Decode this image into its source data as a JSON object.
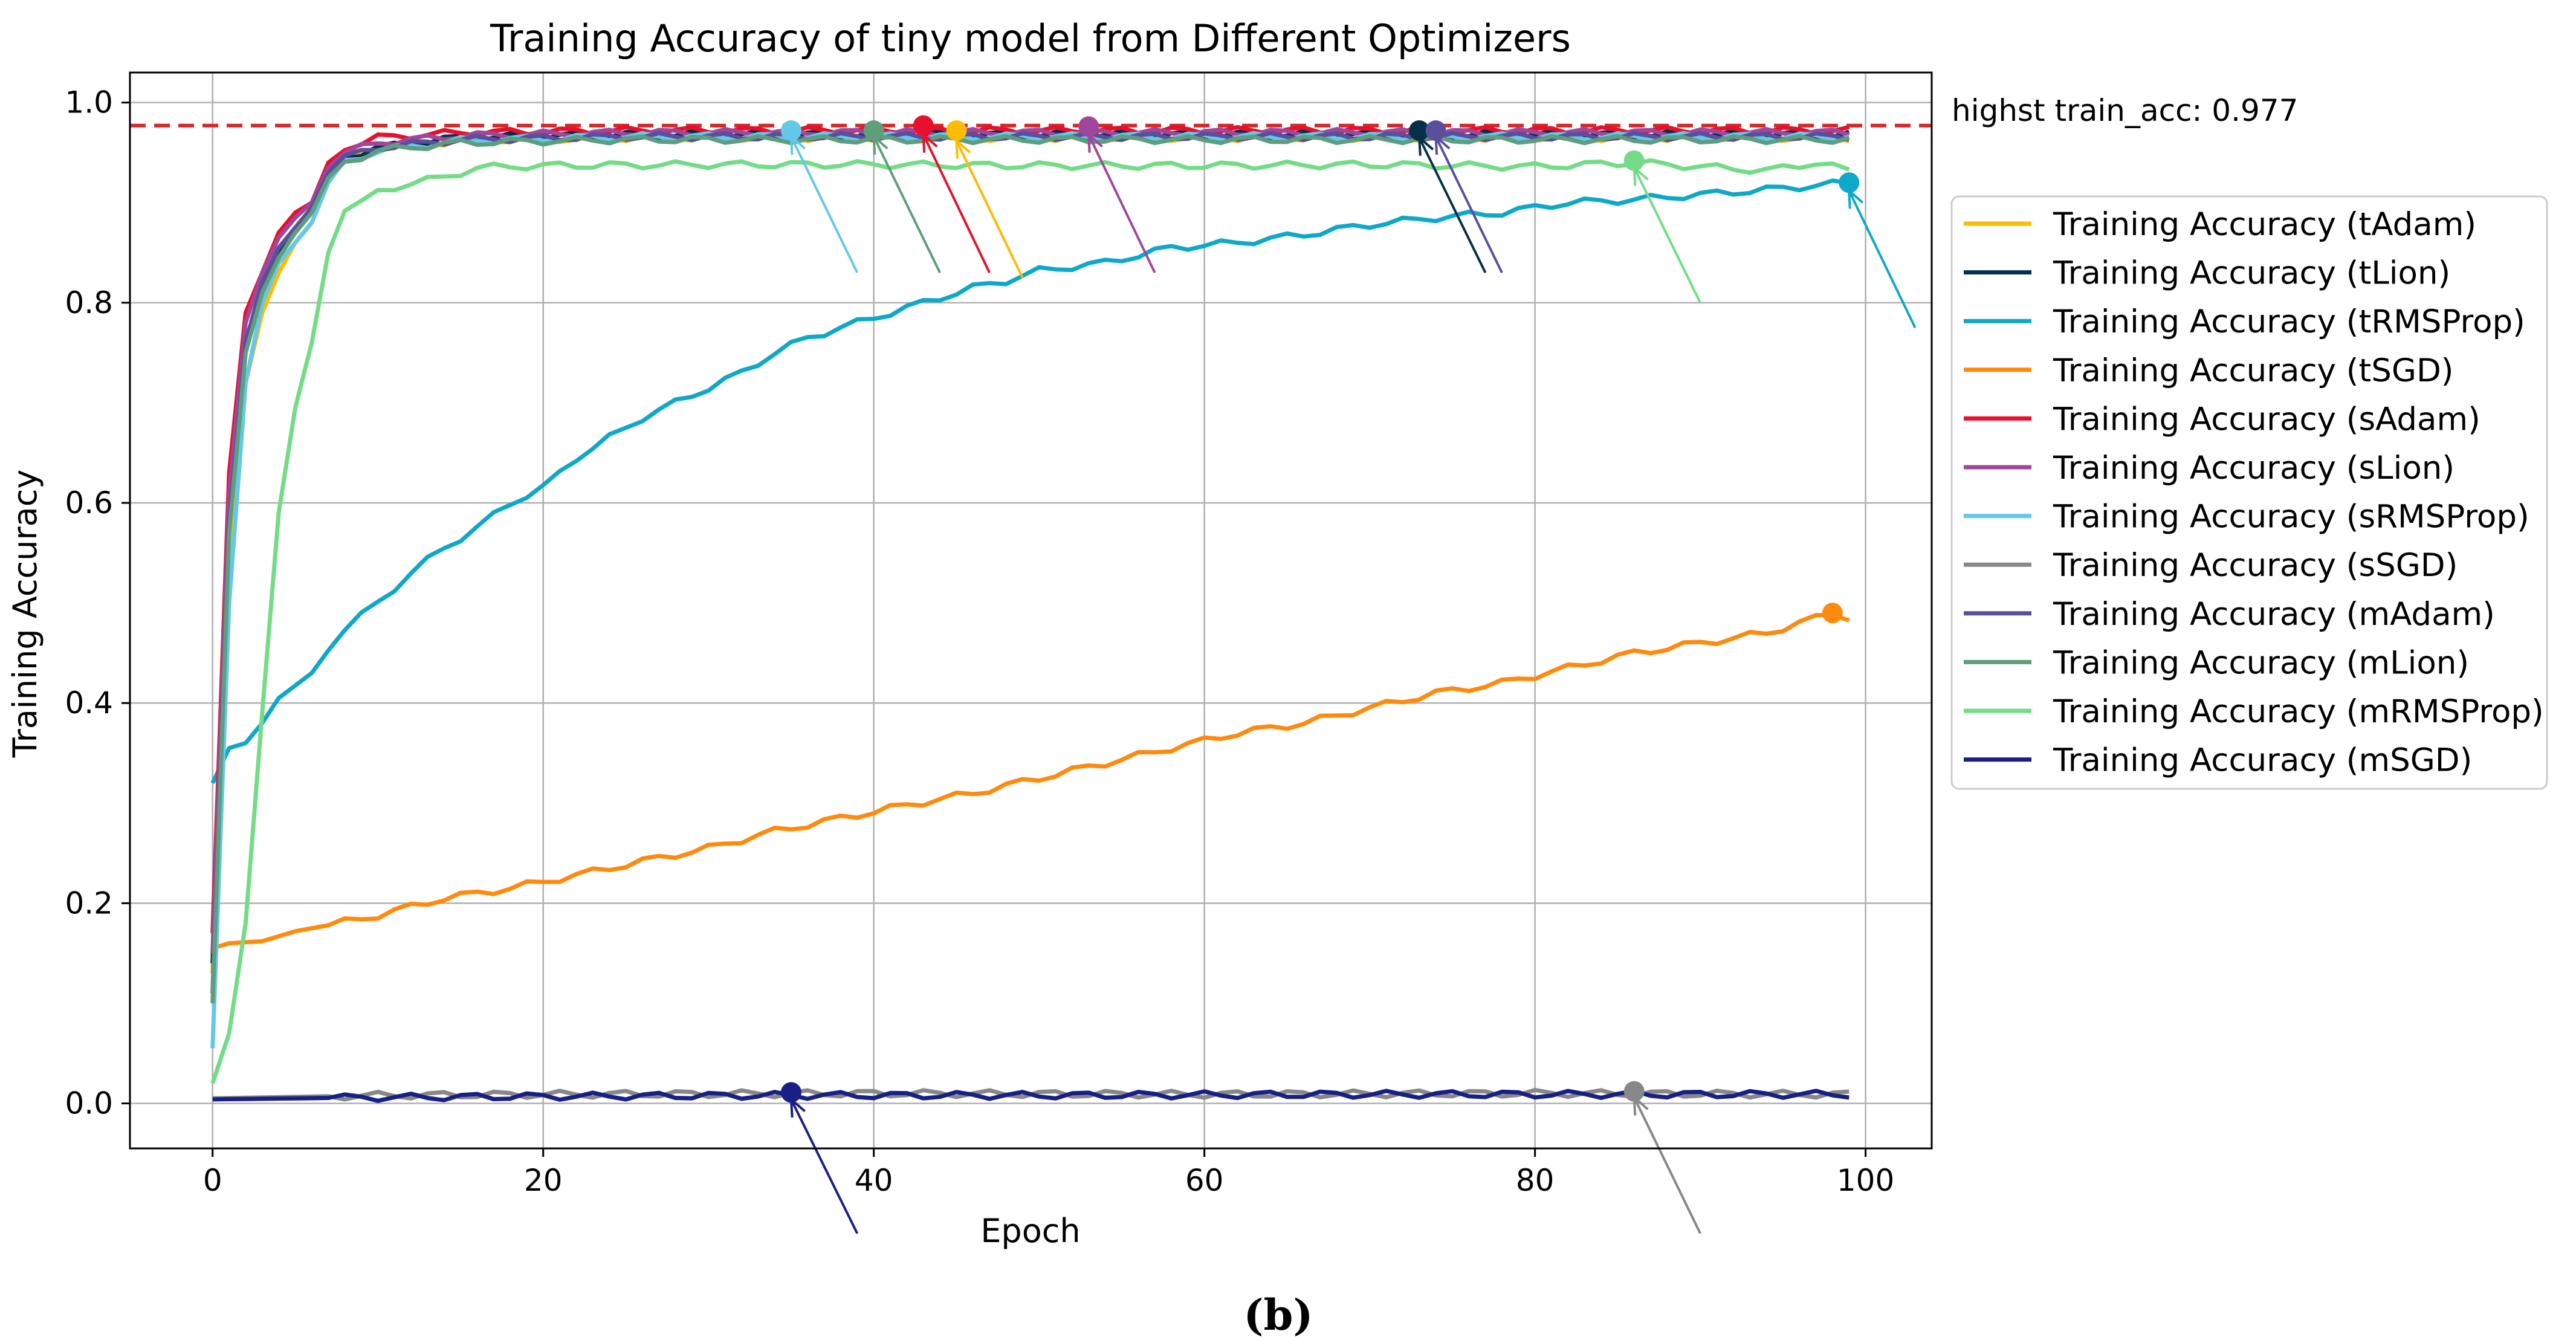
{
  "caption": "(b)",
  "chart_data": {
    "type": "line",
    "title": "Training Accuracy of tiny model from Different Optimizers",
    "xlabel": "Epoch",
    "ylabel": "Training Accuracy",
    "xlim": [
      -5,
      104
    ],
    "ylim": [
      -0.045,
      1.03
    ],
    "grid": true,
    "x_ticks": [
      0,
      20,
      40,
      60,
      80,
      100
    ],
    "y_ticks": [
      0.0,
      0.2,
      0.4,
      0.6,
      0.8,
      1.0
    ],
    "x_tick_labels": [
      "0",
      "20",
      "40",
      "60",
      "80",
      "100"
    ],
    "y_tick_labels": [
      "0.0",
      "0.2",
      "0.4",
      "0.6",
      "0.8",
      "1.0"
    ],
    "legend_position": "outside-right",
    "reference_line": {
      "y": 0.977,
      "color": "#d62728",
      "style": "dashed",
      "label": "highst train_acc: 0.977"
    },
    "series": [
      {
        "name": "Training Accuracy (tAdam)",
        "color": "#fbbc05",
        "start": 0.13,
        "anchors": [
          [
            0,
            0.13
          ],
          [
            1,
            0.55
          ],
          [
            2,
            0.72
          ],
          [
            3,
            0.79
          ],
          [
            4,
            0.83
          ],
          [
            5,
            0.86
          ],
          [
            6,
            0.88
          ],
          [
            7,
            0.92
          ],
          [
            8,
            0.94
          ],
          [
            10,
            0.955
          ],
          [
            15,
            0.962
          ],
          [
            25,
            0.965
          ],
          [
            50,
            0.965
          ],
          [
            75,
            0.965
          ],
          [
            99,
            0.965
          ]
        ],
        "max_epoch": 45,
        "max_value": 0.972,
        "arrow_tip_epoch": 45,
        "arrow_tip_value": 0.962,
        "arrow_tail_epoch": 49,
        "arrow_tail_value": 0.825
      },
      {
        "name": "Training Accuracy (tLion)",
        "color": "#06304a",
        "start": 0.14,
        "anchors": [
          [
            0,
            0.14
          ],
          [
            1,
            0.6
          ],
          [
            2,
            0.76
          ],
          [
            3,
            0.82
          ],
          [
            4,
            0.85
          ],
          [
            5,
            0.87
          ],
          [
            6,
            0.89
          ],
          [
            7,
            0.93
          ],
          [
            8,
            0.945
          ],
          [
            10,
            0.955
          ],
          [
            15,
            0.965
          ],
          [
            25,
            0.968
          ],
          [
            50,
            0.968
          ],
          [
            75,
            0.968
          ],
          [
            99,
            0.968
          ]
        ],
        "max_epoch": 73,
        "max_value": 0.972,
        "arrow_tip_epoch": 73,
        "arrow_tip_value": 0.965,
        "arrow_tail_epoch": 77,
        "arrow_tail_value": 0.83
      },
      {
        "name": "Training Accuracy (tRMSProp)",
        "color": "#0ea8c8",
        "start": 0.32,
        "anchors": [
          [
            0,
            0.32
          ],
          [
            1,
            0.355
          ],
          [
            2,
            0.36
          ],
          [
            3,
            0.38
          ],
          [
            4,
            0.405
          ],
          [
            6,
            0.43
          ],
          [
            8,
            0.475
          ],
          [
            10,
            0.5
          ],
          [
            12,
            0.53
          ],
          [
            14,
            0.555
          ],
          [
            16,
            0.575
          ],
          [
            18,
            0.6
          ],
          [
            20,
            0.615
          ],
          [
            22,
            0.645
          ],
          [
            24,
            0.665
          ],
          [
            26,
            0.685
          ],
          [
            28,
            0.7
          ],
          [
            30,
            0.715
          ],
          [
            32,
            0.73
          ],
          [
            34,
            0.75
          ],
          [
            36,
            0.765
          ],
          [
            38,
            0.775
          ],
          [
            40,
            0.785
          ],
          [
            42,
            0.795
          ],
          [
            44,
            0.805
          ],
          [
            46,
            0.815
          ],
          [
            48,
            0.822
          ],
          [
            50,
            0.832
          ],
          [
            54,
            0.84
          ],
          [
            58,
            0.855
          ],
          [
            62,
            0.86
          ],
          [
            66,
            0.868
          ],
          [
            70,
            0.878
          ],
          [
            74,
            0.885
          ],
          [
            78,
            0.89
          ],
          [
            82,
            0.9
          ],
          [
            86,
            0.903
          ],
          [
            90,
            0.908
          ],
          [
            94,
            0.913
          ],
          [
            99,
            0.92
          ]
        ],
        "max_epoch": 99,
        "max_value": 0.92,
        "arrow_tip_epoch": 99,
        "arrow_tip_value": 0.912,
        "arrow_tail_epoch": 103,
        "arrow_tail_value": 0.775
      },
      {
        "name": "Training Accuracy (tSGD)",
        "color": "#ff8a0c",
        "start": 0.155,
        "anchors": [
          [
            0,
            0.155
          ],
          [
            1,
            0.16
          ],
          [
            3,
            0.162
          ],
          [
            5,
            0.172
          ],
          [
            7,
            0.178
          ],
          [
            10,
            0.188
          ],
          [
            14,
            0.205
          ],
          [
            18,
            0.215
          ],
          [
            22,
            0.228
          ],
          [
            26,
            0.242
          ],
          [
            30,
            0.255
          ],
          [
            34,
            0.272
          ],
          [
            38,
            0.285
          ],
          [
            42,
            0.298
          ],
          [
            46,
            0.31
          ],
          [
            50,
            0.325
          ],
          [
            54,
            0.34
          ],
          [
            58,
            0.355
          ],
          [
            62,
            0.37
          ],
          [
            66,
            0.38
          ],
          [
            70,
            0.395
          ],
          [
            74,
            0.41
          ],
          [
            78,
            0.42
          ],
          [
            82,
            0.435
          ],
          [
            86,
            0.45
          ],
          [
            90,
            0.46
          ],
          [
            94,
            0.47
          ],
          [
            98,
            0.49
          ],
          [
            99,
            0.485
          ]
        ],
        "max_epoch": 98,
        "max_value": 0.49,
        "arrow_tip_epoch": null,
        "arrow_tip_value": null,
        "arrow_tail_epoch": null,
        "arrow_tail_value": null
      },
      {
        "name": "Training Accuracy (sAdam)",
        "color": "#e8102d",
        "start": 0.17,
        "anchors": [
          [
            0,
            0.17
          ],
          [
            1,
            0.63
          ],
          [
            2,
            0.79
          ],
          [
            3,
            0.83
          ],
          [
            4,
            0.87
          ],
          [
            5,
            0.89
          ],
          [
            6,
            0.9
          ],
          [
            7,
            0.94
          ],
          [
            8,
            0.955
          ],
          [
            10,
            0.965
          ],
          [
            15,
            0.97
          ],
          [
            25,
            0.972
          ],
          [
            50,
            0.972
          ],
          [
            75,
            0.972
          ],
          [
            99,
            0.972
          ]
        ],
        "max_epoch": 43,
        "max_value": 0.977,
        "arrow_tip_epoch": 43,
        "arrow_tip_value": 0.968,
        "arrow_tail_epoch": 47,
        "arrow_tail_value": 0.83
      },
      {
        "name": "Training Accuracy (sLion)",
        "color": "#a0479c",
        "start": 0.15,
        "anchors": [
          [
            0,
            0.15
          ],
          [
            1,
            0.61
          ],
          [
            2,
            0.78
          ],
          [
            3,
            0.83
          ],
          [
            4,
            0.865
          ],
          [
            5,
            0.885
          ],
          [
            6,
            0.9
          ],
          [
            7,
            0.935
          ],
          [
            8,
            0.95
          ],
          [
            10,
            0.96
          ],
          [
            15,
            0.967
          ],
          [
            25,
            0.97
          ],
          [
            50,
            0.97
          ],
          [
            75,
            0.97
          ],
          [
            99,
            0.97
          ]
        ],
        "max_epoch": 53,
        "max_value": 0.976,
        "arrow_tip_epoch": 53,
        "arrow_tip_value": 0.968,
        "arrow_tail_epoch": 57,
        "arrow_tail_value": 0.83
      },
      {
        "name": "Training Accuracy (sRMSProp)",
        "color": "#64c8eb",
        "start": 0.055,
        "anchors": [
          [
            0,
            0.055
          ],
          [
            1,
            0.5
          ],
          [
            2,
            0.72
          ],
          [
            3,
            0.8
          ],
          [
            4,
            0.84
          ],
          [
            5,
            0.86
          ],
          [
            6,
            0.88
          ],
          [
            7,
            0.92
          ],
          [
            8,
            0.94
          ],
          [
            10,
            0.952
          ],
          [
            15,
            0.962
          ],
          [
            25,
            0.966
          ],
          [
            50,
            0.966
          ],
          [
            75,
            0.966
          ],
          [
            99,
            0.966
          ]
        ],
        "max_epoch": 35,
        "max_value": 0.972,
        "arrow_tip_epoch": 35,
        "arrow_tip_value": 0.966,
        "arrow_tail_epoch": 39,
        "arrow_tail_value": 0.83
      },
      {
        "name": "Training Accuracy (sSGD)",
        "color": "#888888",
        "start": 0.005,
        "anchors": [
          [
            0,
            0.005
          ],
          [
            10,
            0.008
          ],
          [
            20,
            0.009
          ],
          [
            40,
            0.01
          ],
          [
            60,
            0.009
          ],
          [
            80,
            0.01
          ],
          [
            99,
            0.009
          ]
        ],
        "max_epoch": 86,
        "max_value": 0.012,
        "arrow_tip_epoch": 86,
        "arrow_tip_value": 0.006,
        "arrow_tail_epoch": 90,
        "arrow_tail_value": -0.13
      },
      {
        "name": "Training Accuracy (mAdam)",
        "color": "#5a4f9a",
        "start": 0.11,
        "anchors": [
          [
            0,
            0.11
          ],
          [
            1,
            0.58
          ],
          [
            2,
            0.76
          ],
          [
            3,
            0.82
          ],
          [
            4,
            0.855
          ],
          [
            5,
            0.875
          ],
          [
            6,
            0.895
          ],
          [
            7,
            0.93
          ],
          [
            8,
            0.945
          ],
          [
            10,
            0.955
          ],
          [
            15,
            0.963
          ],
          [
            25,
            0.966
          ],
          [
            50,
            0.966
          ],
          [
            75,
            0.966
          ],
          [
            99,
            0.966
          ]
        ],
        "max_epoch": 74,
        "max_value": 0.972,
        "arrow_tip_epoch": 74,
        "arrow_tip_value": 0.966,
        "arrow_tail_epoch": 78,
        "arrow_tail_value": 0.83
      },
      {
        "name": "Training Accuracy (mLion)",
        "color": "#5e9e7c",
        "start": 0.1,
        "anchors": [
          [
            0,
            0.1
          ],
          [
            1,
            0.57
          ],
          [
            2,
            0.75
          ],
          [
            3,
            0.81
          ],
          [
            4,
            0.845
          ],
          [
            5,
            0.87
          ],
          [
            6,
            0.89
          ],
          [
            7,
            0.925
          ],
          [
            8,
            0.94
          ],
          [
            10,
            0.952
          ],
          [
            15,
            0.96
          ],
          [
            25,
            0.963
          ],
          [
            50,
            0.963
          ],
          [
            75,
            0.963
          ],
          [
            99,
            0.963
          ]
        ],
        "max_epoch": 40,
        "max_value": 0.972,
        "arrow_tip_epoch": 40,
        "arrow_tip_value": 0.966,
        "arrow_tail_epoch": 44,
        "arrow_tail_value": 0.83
      },
      {
        "name": "Training Accuracy (mRMSProp)",
        "color": "#74dc86",
        "start": 0.02,
        "anchors": [
          [
            0,
            0.02
          ],
          [
            1,
            0.07
          ],
          [
            2,
            0.18
          ],
          [
            3,
            0.39
          ],
          [
            4,
            0.59
          ],
          [
            5,
            0.695
          ],
          [
            6,
            0.76
          ],
          [
            7,
            0.85
          ],
          [
            8,
            0.895
          ],
          [
            9,
            0.9
          ],
          [
            10,
            0.91
          ],
          [
            12,
            0.92
          ],
          [
            14,
            0.925
          ],
          [
            16,
            0.935
          ],
          [
            20,
            0.937
          ],
          [
            30,
            0.938
          ],
          [
            40,
            0.938
          ],
          [
            50,
            0.937
          ],
          [
            60,
            0.937
          ],
          [
            70,
            0.938
          ],
          [
            80,
            0.936
          ],
          [
            86,
            0.94
          ],
          [
            90,
            0.936
          ],
          [
            94,
            0.932
          ],
          [
            97,
            0.94
          ],
          [
            99,
            0.932
          ]
        ],
        "max_epoch": 86,
        "max_value": 0.942,
        "arrow_tip_epoch": 86,
        "arrow_tip_value": 0.935,
        "arrow_tail_epoch": 90,
        "arrow_tail_value": 0.8
      },
      {
        "name": "Training Accuracy (mSGD)",
        "color": "#1a1f86",
        "start": 0.004,
        "anchors": [
          [
            0,
            0.004
          ],
          [
            10,
            0.006
          ],
          [
            20,
            0.007
          ],
          [
            35,
            0.008
          ],
          [
            50,
            0.008
          ],
          [
            70,
            0.009
          ],
          [
            99,
            0.009
          ]
        ],
        "max_epoch": 35,
        "max_value": 0.011,
        "arrow_tip_epoch": 35,
        "arrow_tip_value": 0.004,
        "arrow_tail_epoch": 39,
        "arrow_tail_value": -0.13
      }
    ]
  }
}
